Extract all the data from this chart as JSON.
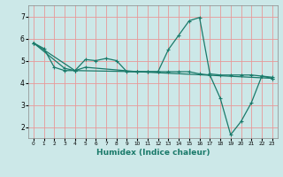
{
  "background_color": "#cce8e8",
  "grid_color": "#e89898",
  "line_color": "#1a7a6a",
  "xlabel": "Humidex (Indice chaleur)",
  "xlim": [
    -0.5,
    23.5
  ],
  "ylim": [
    1.5,
    7.5
  ],
  "yticks": [
    2,
    3,
    4,
    5,
    6,
    7
  ],
  "xticks": [
    0,
    1,
    2,
    3,
    4,
    5,
    6,
    7,
    8,
    9,
    10,
    11,
    12,
    13,
    14,
    15,
    16,
    17,
    18,
    19,
    20,
    21,
    22,
    23
  ],
  "line1_x": [
    0,
    1,
    2,
    3,
    4,
    5,
    6,
    7,
    8,
    9,
    10,
    11,
    12,
    13,
    14,
    15,
    16,
    17,
    18,
    19,
    20,
    21,
    22,
    23
  ],
  "line1_y": [
    5.8,
    5.55,
    4.7,
    4.55,
    4.55,
    5.05,
    5.0,
    5.1,
    5.0,
    4.5,
    4.5,
    4.5,
    4.5,
    5.5,
    6.15,
    6.8,
    6.95,
    4.4,
    4.35,
    4.35,
    4.35,
    4.35,
    4.3,
    4.25
  ],
  "line2_x": [
    0,
    3,
    4,
    5,
    10,
    11,
    12,
    13,
    14,
    15,
    16,
    17,
    18,
    19,
    20,
    21,
    22,
    23
  ],
  "line2_y": [
    5.8,
    4.65,
    4.55,
    4.7,
    4.5,
    4.5,
    4.5,
    4.5,
    4.5,
    4.5,
    4.4,
    4.35,
    3.3,
    1.65,
    2.25,
    3.1,
    4.3,
    4.2
  ],
  "line3_x": [
    0,
    4,
    10,
    23
  ],
  "line3_y": [
    5.8,
    4.55,
    4.5,
    4.2
  ]
}
